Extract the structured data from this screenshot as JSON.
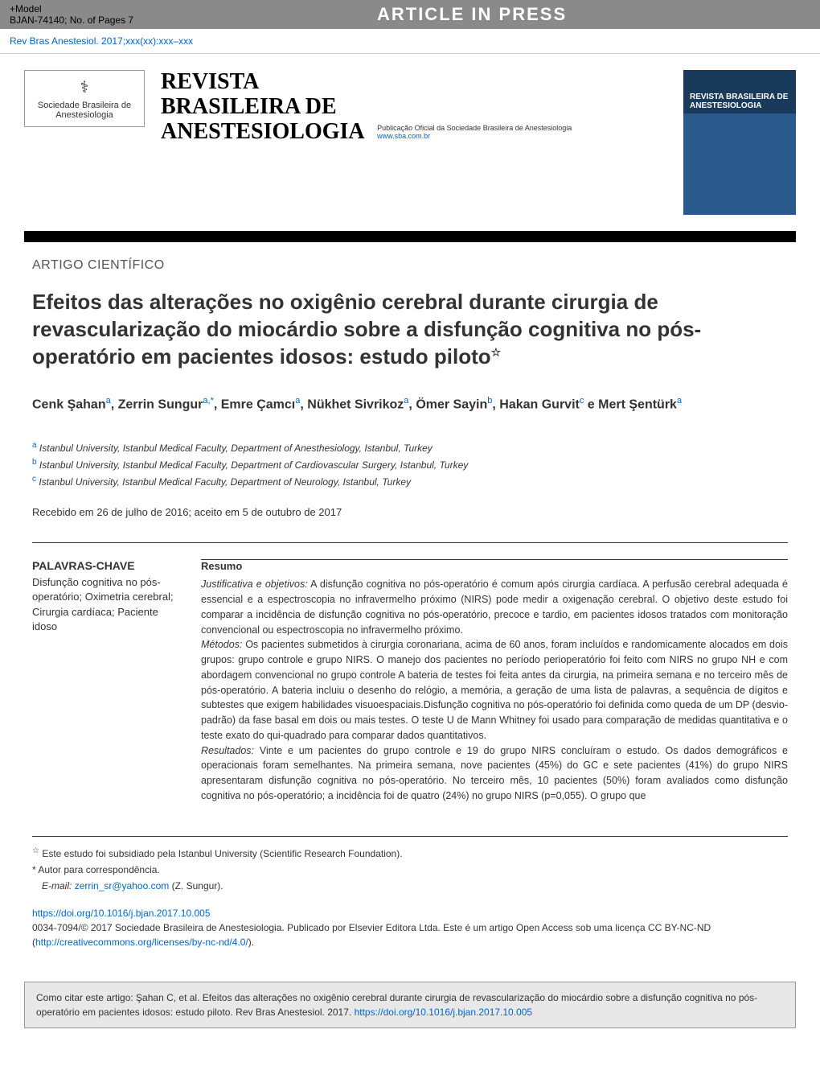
{
  "topBar": {
    "modelLabel": "+Model",
    "modelId": "BJAN-74140;",
    "pagesLabel": "No. of Pages 7",
    "banner": "ARTICLE IN PRESS"
  },
  "citation": "Rev Bras Anestesiol. 2017;xxx(xx):xxx–xxx",
  "society": {
    "name": "Sociedade Brasileira de Anestesiologia"
  },
  "journal": {
    "titleLine1": "REVISTA",
    "titleLine2": "BRASILEIRA DE",
    "titleLine3": "ANESTESIOLOGIA",
    "subtitle": "Publicação Oficial da Sociedade Brasileira de Anestesiologia",
    "url": "www.sba.com.br"
  },
  "coverThumb": {
    "title": "REVISTA BRASILEIRA DE ANESTESIOLOGIA"
  },
  "articleType": "ARTIGO CIENTÍFICO",
  "title": "Efeitos das alterações no oxigênio cerebral durante cirurgia de revascularização do miocárdio sobre a disfunção cognitiva no pós-operatório em pacientes idosos: estudo piloto",
  "authors": [
    {
      "name": "Cenk Şahan",
      "affil": "a"
    },
    {
      "name": "Zerrin Sungur",
      "affil": "a,*"
    },
    {
      "name": "Emre Çamcı",
      "affil": "a"
    },
    {
      "name": "Nükhet Sivrikoz",
      "affil": "a"
    },
    {
      "name": "Ömer Sayin",
      "affil": "b"
    },
    {
      "name": "Hakan Gurvit",
      "affil": "c"
    },
    {
      "name": "Mert Şentürk",
      "affil": "a"
    }
  ],
  "authorsConnector": " e ",
  "affiliations": {
    "a": "Istanbul University, Istanbul Medical Faculty, Department of Anesthesiology, Istanbul, Turkey",
    "b": "Istanbul University, Istanbul Medical Faculty, Department of Cardiovascular Surgery, Istanbul, Turkey",
    "c": "Istanbul University, Istanbul Medical Faculty, Department of Neurology, Istanbul, Turkey"
  },
  "received": "Recebido em 26 de julho de 2016; aceito em 5 de outubro de 2017",
  "keywords": {
    "heading": "PALAVRAS-CHAVE",
    "list": "Disfunção cognitiva no pós-operatório; Oximetria cerebral; Cirurgia cardíaca; Paciente idoso"
  },
  "abstract": {
    "heading": "Resumo",
    "sections": {
      "justificativa": {
        "label": "Justificativa e objetivos:",
        "text": " A disfunção cognitiva no pós-operatório é comum após cirurgia cardíaca. A perfusão cerebral adequada é essencial e a espectroscopia no infravermelho próximo (NIRS) pode medir a oxigenação cerebral. O objetivo deste estudo foi comparar a incidência de disfunção cognitiva no pós-operatório, precoce e tardio, em pacientes idosos tratados com monitoração convencional ou espectroscopia no infravermelho próximo."
      },
      "metodos": {
        "label": "Métodos:",
        "text": " Os pacientes submetidos à cirurgia coronariana, acima de 60 anos, foram incluídos e randomicamente alocados em dois grupos: grupo controle e grupo NIRS. O manejo dos pacientes no período perioperatório foi feito com NIRS no grupo NH e com abordagem convencional no grupo controle A bateria de testes foi feita antes da cirurgia, na primeira semana e no terceiro mês de pós-operatório. A bateria incluiu o desenho do relógio, a memória, a geração de uma lista de palavras, a sequência de dígitos e subtestes que exigem habilidades visuoespaciais.Disfunção cognitiva no pós-operatório foi definida como queda de um DP (desvio-padrão) da fase basal em dois ou mais testes. O teste U de Mann Whitney foi usado para comparação de medidas quantitativa e o teste exato do qui-quadrado para comparar dados quantitativos."
      },
      "resultados": {
        "label": "Resultados:",
        "text": " Vinte e um pacientes do grupo controle e 19 do grupo NIRS concluíram o estudo. Os dados demográficos e operacionais foram semelhantes. Na primeira semana, nove pacientes (45%) do GC e sete pacientes (41%) do grupo NIRS apresentaram disfunção cognitiva no pós-operatório. No terceiro mês, 10 pacientes (50%) foram avaliados como disfunção cognitiva no pós-operatório; a incidência foi de quatro (24%) no grupo NIRS (p=0,055). O grupo que"
      }
    }
  },
  "footnotes": {
    "funding": "Este estudo foi subsidiado pela Istanbul University (Scientific Research Foundation).",
    "corresponding": "Autor para correspondência.",
    "emailLabel": "E-mail:",
    "email": "zerrin_sr@yahoo.com",
    "emailAuthor": "(Z. Sungur)."
  },
  "doi": {
    "url": "https://doi.org/10.1016/j.bjan.2017.10.005",
    "copyright": "0034-7094/© 2017 Sociedade Brasileira de Anestesiologia. Publicado por Elsevier Editora Ltda. Este é um artigo Open Access sob uma licença CC BY-NC-ND (",
    "licenseUrl": "http://creativecommons.org/licenses/by-nc-nd/4.0/",
    "copyrightEnd": ")."
  },
  "citeBox": {
    "text": "Como citar este artigo: Şahan C, et al. Efeitos das alterações no oxigênio cerebral durante cirurgia de revascularização do miocárdio sobre a disfunção cognitiva no pós-operatório em pacientes idosos: estudo piloto. Rev Bras Anestesiol. 2017.",
    "link": "https://doi.org/10.1016/j.bjan.2017.10.005"
  }
}
